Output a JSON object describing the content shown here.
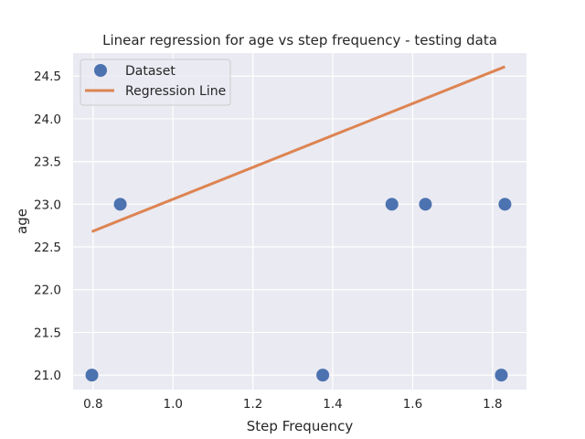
{
  "chart_data": {
    "type": "scatter",
    "title": "Linear regression for age vs step frequency - testing data",
    "xlabel": "Step Frequency",
    "ylabel": "age",
    "xlim": [
      0.75,
      1.885
    ],
    "ylim": [
      20.83,
      24.77
    ],
    "xticks": [
      0.8,
      1.0,
      1.2,
      1.4,
      1.6,
      1.8
    ],
    "xtick_labels": [
      "0.8",
      "1.0",
      "1.2",
      "1.4",
      "1.6",
      "1.8"
    ],
    "yticks": [
      21.0,
      21.5,
      22.0,
      22.5,
      23.0,
      23.5,
      24.0,
      24.5
    ],
    "ytick_labels": [
      "21.0",
      "21.5",
      "22.0",
      "22.5",
      "23.0",
      "23.5",
      "24.0",
      "24.5"
    ],
    "grid": true,
    "legend_position": "top-left",
    "series": [
      {
        "name": "Dataset",
        "kind": "scatter",
        "color": "#4c72b0",
        "points": [
          {
            "x": 0.797,
            "y": 21.0
          },
          {
            "x": 0.868,
            "y": 23.0
          },
          {
            "x": 1.375,
            "y": 21.0
          },
          {
            "x": 1.548,
            "y": 23.0
          },
          {
            "x": 1.632,
            "y": 23.0
          },
          {
            "x": 1.822,
            "y": 21.0
          },
          {
            "x": 1.831,
            "y": 23.0
          }
        ]
      },
      {
        "name": "Regression Line",
        "kind": "line",
        "color": "#dd8452",
        "points": [
          {
            "x": 0.797,
            "y": 22.68
          },
          {
            "x": 1.831,
            "y": 24.61
          }
        ]
      }
    ],
    "colors": {
      "plot_background": "#eaeaf2",
      "grid": "#ffffff",
      "text": "#262626"
    }
  }
}
